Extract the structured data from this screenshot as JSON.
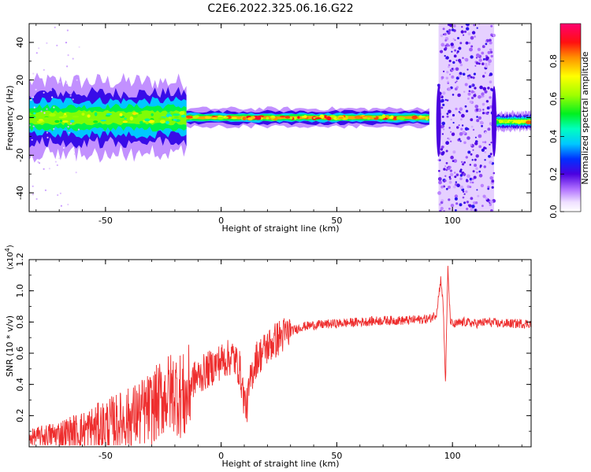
{
  "chart_data": [
    {
      "type": "heatmap",
      "title": "C2E6.2022.325.06.16.G22",
      "xlabel": "Height of straight line (km)",
      "ylabel": "Frequency (Hz)",
      "xlim": [
        -83,
        134
      ],
      "ylim": [
        -50,
        50
      ],
      "xticks": [
        -50,
        0,
        50,
        100
      ],
      "yticks": [
        -40,
        -20,
        0,
        20,
        40
      ],
      "colorbar": {
        "label": "Normalized spectral amplitude",
        "range": [
          0.0,
          1.0
        ],
        "ticks": [
          0.0,
          0.2,
          0.4,
          0.6,
          0.8
        ],
        "tick_labels": [
          "0.0",
          "0.2",
          "0.4",
          "0.6",
          "0.8"
        ]
      },
      "features": [
        {
          "x_from": -83,
          "x_to": -15,
          "y_center": 0,
          "y_halfwidth": 6,
          "amplitude": 0.4
        },
        {
          "x_from": -15,
          "x_to": 90,
          "y_center": 0,
          "y_halfwidth": 1.5,
          "amplitude": 0.6
        },
        {
          "x_from": 94,
          "x_to": 118,
          "y_center": 0,
          "y_halfwidth": 50,
          "amplitude": 0.15
        },
        {
          "x_from": 118,
          "x_to": 134,
          "y_center": -2,
          "y_halfwidth": 1.5,
          "amplitude": 0.5
        }
      ]
    },
    {
      "type": "line",
      "xlabel": "Height of straight line (km)",
      "ylabel": "SNR (10 * v/v)",
      "y_multiplier": "(x10",
      "y_multiplier_exp": "4",
      "y_multiplier_close": ")",
      "xlim": [
        -83,
        134
      ],
      "ylim": [
        0,
        1.2
      ],
      "xticks": [
        -50,
        0,
        50,
        100
      ],
      "yticks": [
        0.2,
        0.4,
        0.6,
        0.8,
        1.0,
        1.2
      ],
      "ytick_labels": [
        "0.2",
        "0.4",
        "0.6",
        "0.8",
        "1.0",
        "1.2"
      ],
      "color": "#ee2e2e",
      "series": [
        {
          "x": [
            -83,
            -70,
            -60,
            -50,
            -40,
            -30,
            -25,
            -20,
            -15,
            -13,
            -10,
            -5,
            0,
            5,
            8,
            10,
            11,
            12,
            13,
            15,
            20,
            25,
            30,
            35,
            40,
            50,
            60,
            70,
            80,
            90,
            93,
            95,
            96,
            97,
            98,
            99,
            100,
            105,
            110,
            115,
            120,
            125,
            134
          ],
          "y": [
            0.06,
            0.08,
            0.1,
            0.14,
            0.18,
            0.25,
            0.32,
            0.36,
            0.3,
            0.42,
            0.45,
            0.5,
            0.55,
            0.58,
            0.5,
            0.3,
            0.25,
            0.35,
            0.45,
            0.56,
            0.64,
            0.7,
            0.74,
            0.77,
            0.78,
            0.79,
            0.8,
            0.81,
            0.81,
            0.82,
            0.85,
            1.08,
            0.9,
            0.4,
            1.15,
            0.82,
            0.78,
            0.8,
            0.79,
            0.8,
            0.79,
            0.79,
            0.79
          ]
        }
      ]
    }
  ]
}
